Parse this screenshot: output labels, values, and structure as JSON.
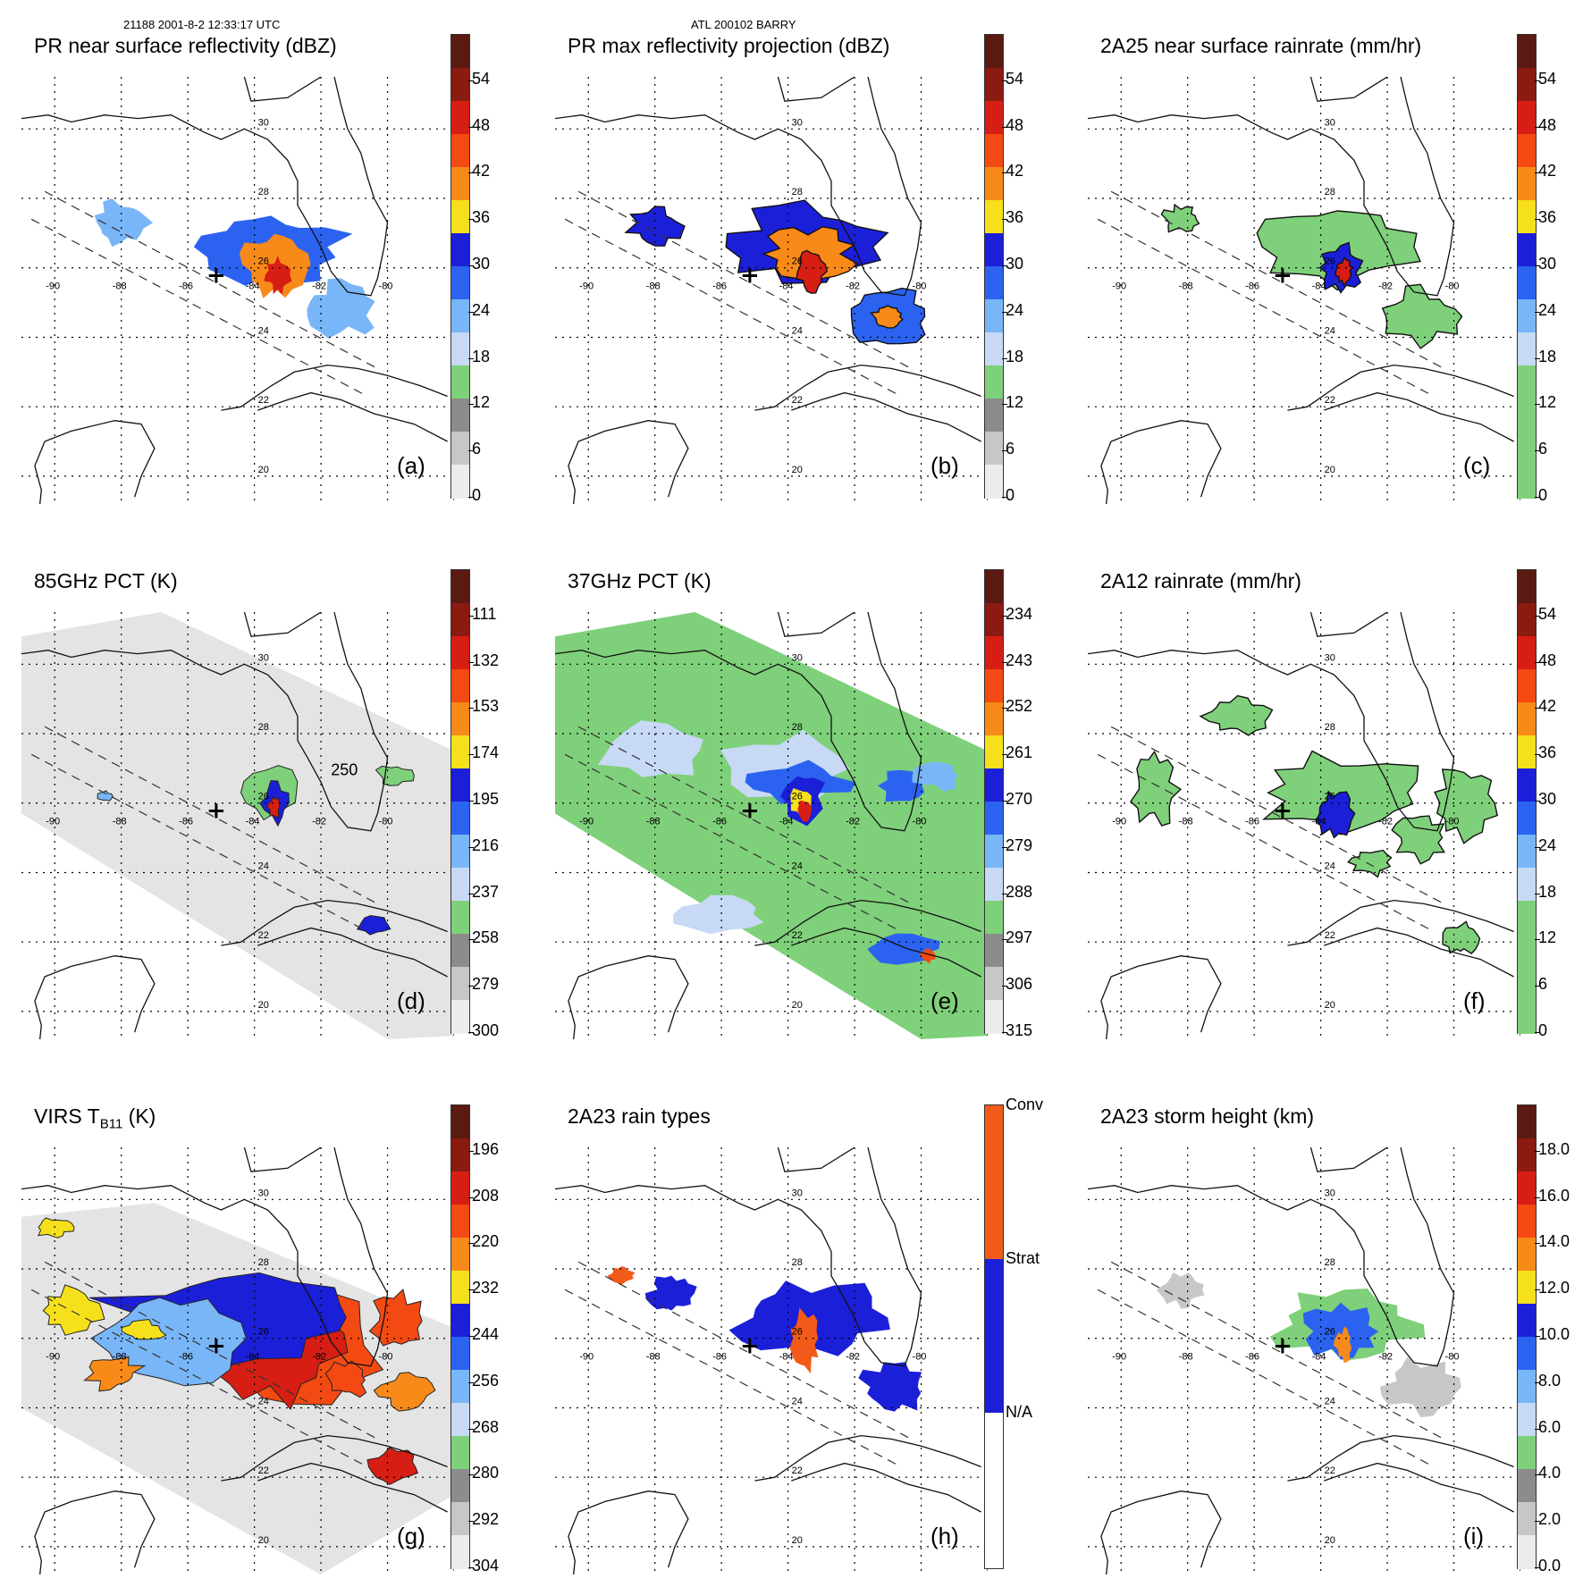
{
  "header": {
    "orbit_time": "21188 2001-8-2 12:33:17 UTC",
    "storm": "ATL 200102 BARRY"
  },
  "axis": {
    "lon_labels": [
      "-90",
      "-88",
      "-86",
      "-84",
      "-82",
      "-80"
    ],
    "lat_labels": [
      "30",
      "28",
      "26",
      "24",
      "22",
      "20"
    ]
  },
  "panels": [
    {
      "id": "a",
      "title": "PR near surface reflectivity (dBZ)",
      "letter": "(a)",
      "cbar_labels": [
        "54",
        "48",
        "42",
        "36",
        "30",
        "24",
        "18",
        "12",
        "6",
        "0"
      ],
      "palette": "refl"
    },
    {
      "id": "b",
      "title": "PR max reflectivity projection (dBZ)",
      "letter": "(b)",
      "cbar_labels": [
        "54",
        "48",
        "42",
        "36",
        "30",
        "24",
        "18",
        "12",
        "6",
        "0"
      ],
      "palette": "refl"
    },
    {
      "id": "c",
      "title": "2A25 near surface rainrate (mm/hr)",
      "letter": "(c)",
      "cbar_labels": [
        "54",
        "48",
        "42",
        "36",
        "30",
        "24",
        "18",
        "12",
        "6",
        "0"
      ],
      "palette": "rain"
    },
    {
      "id": "d",
      "title": "85GHz PCT (K)",
      "letter": "(d)",
      "cbar_labels": [
        "111",
        "132",
        "153",
        "174",
        "195",
        "216",
        "237",
        "258",
        "279",
        "300"
      ],
      "palette": "refl",
      "annotation": "250"
    },
    {
      "id": "e",
      "title": "37GHz PCT (K)",
      "letter": "(e)",
      "cbar_labels": [
        "234",
        "243",
        "252",
        "261",
        "270",
        "279",
        "288",
        "297",
        "306",
        "315"
      ],
      "palette": "refl"
    },
    {
      "id": "f",
      "title": "2A12 rainrate (mm/hr)",
      "letter": "(f)",
      "cbar_labels": [
        "54",
        "48",
        "42",
        "36",
        "30",
        "24",
        "18",
        "12",
        "6",
        "0"
      ],
      "palette": "rain"
    },
    {
      "id": "g",
      "title": "VIRS T",
      "title_sub": "B11",
      "title_tail": " (K)",
      "letter": "(g)",
      "cbar_labels": [
        "196",
        "208",
        "220",
        "232",
        "244",
        "256",
        "268",
        "280",
        "292",
        "304"
      ],
      "palette": "refl"
    },
    {
      "id": "h",
      "title": "2A23 rain types",
      "letter": "(h)",
      "cbar_labels": [
        "Conv",
        "Strat",
        "N/A"
      ],
      "palette": "types"
    },
    {
      "id": "i",
      "title": "2A23 storm height (km)",
      "letter": "(i)",
      "cbar_labels": [
        "18.0",
        "16.0",
        "14.0",
        "12.0",
        "10.0",
        "8.0",
        "6.0",
        "4.0",
        "2.0",
        "0.0"
      ],
      "palette": "refl"
    }
  ],
  "colors": {
    "refl": [
      "#5a1a12",
      "#8b1a10",
      "#d71e14",
      "#f24a12",
      "#f88a1a",
      "#f6e01c",
      "#1c1fd8",
      "#2b63f0",
      "#79b6f7",
      "#c7d9f5",
      "#7fd07a",
      "#8c8c8c",
      "#c7c7c7",
      "#ececec"
    ],
    "rain": [
      "#5a1a12",
      "#8b1a10",
      "#d71e14",
      "#f24a12",
      "#f88a1a",
      "#f6e01c",
      "#1c1fd8",
      "#2b63f0",
      "#79b6f7",
      "#c7d9f5",
      "#7fd07a"
    ],
    "types": [
      "#f25a1a",
      "#1c1fd8",
      "#ffffff"
    ]
  }
}
